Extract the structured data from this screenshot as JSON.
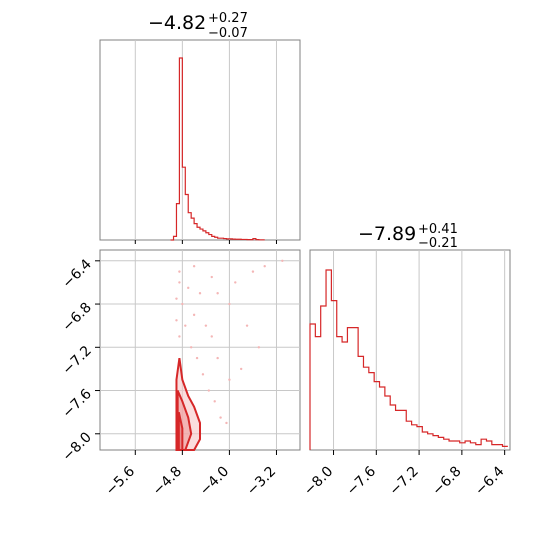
{
  "colors": {
    "series": "#d62728",
    "grid": "#c8c8c8",
    "frame": "#808080"
  },
  "chart_data": [
    {
      "type": "histogram",
      "panel": "top-left",
      "title": {
        "median": "−4.82",
        "upper": "+0.27",
        "lower": "−0.07"
      },
      "xlim": [
        -6.2,
        -2.8
      ],
      "xticks": [
        -5.6,
        -4.8,
        -4.0,
        -3.2
      ],
      "bins": [
        -5.0,
        -4.95,
        -4.9,
        -4.85,
        -4.8,
        -4.75,
        -4.7,
        -4.65,
        -4.6,
        -4.55,
        -4.5,
        -4.45,
        -4.4,
        -4.35,
        -4.3,
        -4.25,
        -4.2,
        -4.15,
        -4.1,
        -4.05,
        -4.0,
        -3.95,
        -3.9,
        -3.85,
        -3.8,
        -3.75,
        -3.7,
        -3.65,
        -3.6,
        -3.55,
        -3.5,
        -3.45,
        -3.4
      ],
      "counts": [
        0,
        0.02,
        0.2,
        1.0,
        0.4,
        0.25,
        0.15,
        0.12,
        0.09,
        0.07,
        0.06,
        0.05,
        0.04,
        0.03,
        0.02,
        0.015,
        0.01,
        0.01,
        0.008,
        0.006,
        0.006,
        0.005,
        0.004,
        0.004,
        0.003,
        0.003,
        0.002,
        0.002,
        0.008,
        0.002,
        0.001,
        0.001
      ],
      "grid": true
    },
    {
      "type": "scatter+contour",
      "panel": "bottom-left",
      "xlim": [
        -6.2,
        -2.8
      ],
      "ylim": [
        -8.15,
        -6.3
      ],
      "xticks": [
        -5.6,
        -4.8,
        -4.0,
        -3.2
      ],
      "yticks": [
        -6.4,
        -6.8,
        -7.2,
        -7.6,
        -8.0
      ],
      "contour_levels": [
        [
          [
            -4.9,
            -8.15
          ],
          [
            -4.9,
            -7.5
          ],
          [
            -4.85,
            -7.3
          ],
          [
            -4.8,
            -7.5
          ],
          [
            -4.7,
            -7.65
          ],
          [
            -4.6,
            -7.75
          ],
          [
            -4.5,
            -7.9
          ],
          [
            -4.5,
            -8.05
          ],
          [
            -4.6,
            -8.15
          ]
        ],
        [
          [
            -4.88,
            -8.15
          ],
          [
            -4.88,
            -7.6
          ],
          [
            -4.8,
            -7.7
          ],
          [
            -4.7,
            -7.85
          ],
          [
            -4.65,
            -8.0
          ],
          [
            -4.75,
            -8.15
          ]
        ],
        [
          [
            -4.86,
            -8.15
          ],
          [
            -4.86,
            -7.8
          ],
          [
            -4.8,
            -7.95
          ],
          [
            -4.8,
            -8.15
          ]
        ]
      ],
      "scatter_points": [
        [
          -4.85,
          -6.6
        ],
        [
          -4.7,
          -6.65
        ],
        [
          -4.5,
          -6.7
        ],
        [
          -4.2,
          -6.7
        ],
        [
          -3.9,
          -6.6
        ],
        [
          -3.6,
          -6.5
        ],
        [
          -3.4,
          -6.45
        ],
        [
          -3.1,
          -6.4
        ],
        [
          -4.8,
          -6.8
        ],
        [
          -4.6,
          -6.9
        ],
        [
          -4.4,
          -7.0
        ],
        [
          -4.3,
          -7.1
        ],
        [
          -4.2,
          -7.3
        ],
        [
          -4.0,
          -7.5
        ],
        [
          -3.8,
          -7.4
        ],
        [
          -3.5,
          -7.2
        ],
        [
          -4.75,
          -7.0
        ],
        [
          -4.65,
          -7.2
        ],
        [
          -4.55,
          -7.3
        ],
        [
          -4.45,
          -7.45
        ],
        [
          -4.35,
          -7.6
        ],
        [
          -4.25,
          -7.7
        ],
        [
          -4.15,
          -7.85
        ],
        [
          -4.05,
          -7.9
        ],
        [
          -4.85,
          -7.1
        ],
        [
          -4.9,
          -6.95
        ],
        [
          -4.9,
          -6.75
        ],
        [
          -4.85,
          -6.5
        ],
        [
          -4.6,
          -6.45
        ],
        [
          -4.3,
          -6.55
        ],
        [
          -4.0,
          -6.8
        ],
        [
          -3.7,
          -7.0
        ]
      ],
      "grid": true
    },
    {
      "type": "histogram",
      "panel": "bottom-right",
      "title": {
        "median": "−7.89",
        "upper": "+0.41",
        "lower": "−0.21"
      },
      "xlim": [
        -8.22,
        -6.35
      ],
      "xticks": [
        -8.0,
        -7.6,
        -7.2,
        -6.8,
        -6.4
      ],
      "bins": [
        -8.22,
        -8.17,
        -8.12,
        -8.07,
        -8.02,
        -7.97,
        -7.92,
        -7.87,
        -7.82,
        -7.77,
        -7.72,
        -7.67,
        -7.62,
        -7.57,
        -7.52,
        -7.47,
        -7.42,
        -7.37,
        -7.32,
        -7.27,
        -7.22,
        -7.17,
        -7.12,
        -7.07,
        -7.02,
        -6.97,
        -6.92,
        -6.87,
        -6.82,
        -6.77,
        -6.72,
        -6.67,
        -6.62,
        -6.57,
        -6.52,
        -6.47,
        -6.42,
        -6.37
      ],
      "counts": [
        0.7,
        0.63,
        0.8,
        1.0,
        0.83,
        0.63,
        0.6,
        0.68,
        0.68,
        0.52,
        0.46,
        0.43,
        0.38,
        0.35,
        0.3,
        0.25,
        0.22,
        0.22,
        0.16,
        0.14,
        0.13,
        0.1,
        0.09,
        0.08,
        0.07,
        0.06,
        0.05,
        0.05,
        0.04,
        0.05,
        0.04,
        0.03,
        0.06,
        0.05,
        0.03,
        0.03,
        0.02
      ],
      "grid": true
    }
  ]
}
